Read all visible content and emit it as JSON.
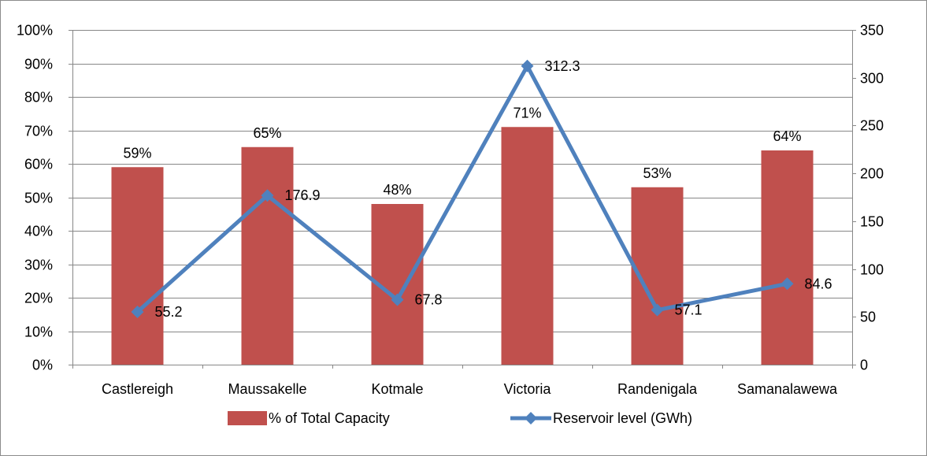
{
  "chart_data": {
    "type": "bar",
    "categories": [
      "Castlereigh",
      "Maussakelle",
      "Kotmale",
      "Victoria",
      "Randenigala",
      "Samanalawewa"
    ],
    "series": [
      {
        "name": "% of Total Capacity",
        "type": "bar",
        "axis": "left",
        "values": [
          59,
          65,
          48,
          71,
          53,
          64
        ],
        "labels": [
          "59%",
          "65%",
          "48%",
          "71%",
          "53%",
          "64%"
        ],
        "color": "#c0504d"
      },
      {
        "name": "Reservoir level (GWh)",
        "type": "line",
        "axis": "right",
        "values": [
          55.2,
          176.9,
          67.8,
          312.3,
          57.1,
          84.6
        ],
        "labels": [
          "55.2",
          "176.9",
          "67.8",
          "312.3",
          "57.1",
          "84.6"
        ],
        "color": "#4f81bd",
        "marker": "diamond"
      }
    ],
    "y_left": {
      "min": 0,
      "max": 100,
      "step": 10,
      "tick_labels": [
        "0%",
        "10%",
        "20%",
        "30%",
        "40%",
        "50%",
        "60%",
        "70%",
        "80%",
        "90%",
        "100%"
      ]
    },
    "y_right": {
      "min": 0,
      "max": 350,
      "step": 50,
      "tick_labels": [
        "0",
        "50",
        "100",
        "150",
        "200",
        "250",
        "300",
        "350"
      ]
    },
    "grid": true,
    "legend_position": "bottom"
  }
}
